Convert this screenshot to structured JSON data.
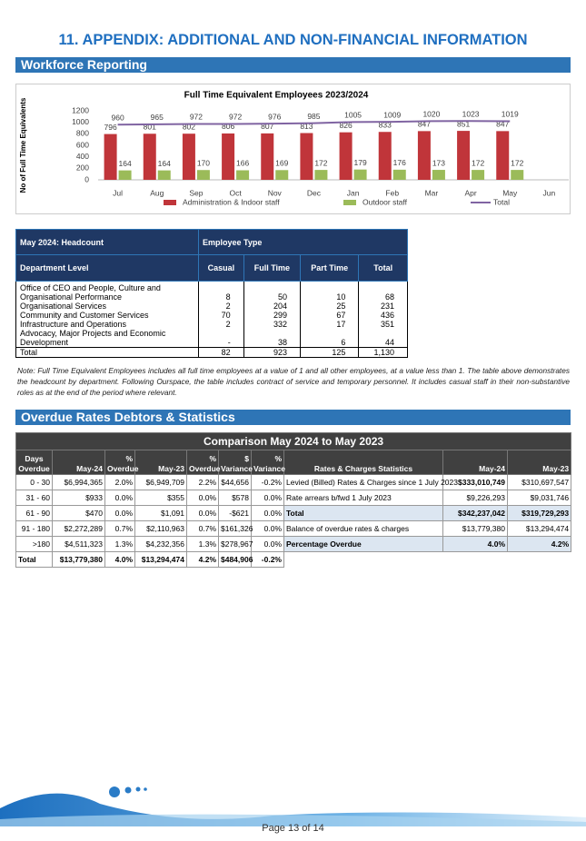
{
  "header": {
    "title": "11. APPENDIX: ADDITIONAL AND NON-FINANCIAL INFORMATION"
  },
  "sections": [
    "Workforce Reporting",
    "Overdue Rates Debtors & Statistics"
  ],
  "chart_data": {
    "type": "bar",
    "title": "Full Time Equivalent Employees 2023/2024",
    "y_label": "No of Full Time Equivalents",
    "categories": [
      "Jul",
      "Aug",
      "Sep",
      "Oct",
      "Nov",
      "Dec",
      "Jan",
      "Feb",
      "Mar",
      "Apr",
      "May",
      "Jun"
    ],
    "series": [
      {
        "name": "Administration & Indoor staff",
        "color": "#c0353a",
        "values": [
          796,
          801,
          802,
          806,
          807,
          813,
          826,
          833,
          847,
          851,
          847,
          null
        ]
      },
      {
        "name": "Outdoor staff",
        "color": "#9bbb59",
        "values": [
          164,
          164,
          170,
          166,
          169,
          172,
          179,
          176,
          173,
          172,
          172,
          null
        ]
      },
      {
        "name": "Total",
        "type": "line",
        "color": "#8064a2",
        "values": [
          960,
          965,
          972,
          972,
          976,
          985,
          1005,
          1009,
          1020,
          1023,
          1019,
          null
        ]
      }
    ],
    "ylim": [
      0,
      1200
    ],
    "yticks": [
      0,
      200,
      400,
      600,
      800,
      1000,
      1200
    ],
    "grid": false,
    "legend": "bottom"
  },
  "headcount_table": {
    "title": "May 2024: Headcount",
    "group": "Employee Type",
    "columns": [
      "Department Level",
      "Casual",
      "Full Time",
      "Part Time",
      "Total"
    ],
    "rows": [
      [
        "Office of CEO and People, Culture and Organisational Performance",
        8,
        50,
        10,
        68
      ],
      [
        "Organisational Services",
        2,
        204,
        25,
        231
      ],
      [
        "Community and Customer Services",
        70,
        299,
        67,
        436
      ],
      [
        "Infrastructure and Operations",
        2,
        332,
        17,
        351
      ],
      [
        "Advocacy, Major Projects and Economic Development",
        "-",
        38,
        6,
        44
      ]
    ],
    "total": [
      "Total",
      82,
      923,
      125,
      "1,130"
    ]
  },
  "note": "Note: Full Time Equivalent Employees includes all full time employees at a value of 1 and all other employees, at a value less than 1. The table above demonstrates the headcount by department. Following Ourspace, the table includes contract of service and temporary personnel. It includes casual staff in their non-substantive roles as at the end of the period where relevant.",
  "comparison_title": "Comparison May 2024 to May 2023",
  "overdue_table": {
    "columns": [
      "Days Overdue",
      "May-24",
      "% Overdue",
      "May-23",
      "% Overdue",
      "$ Variance",
      "% Variance"
    ],
    "rows": [
      [
        "0 - 30",
        "$6,994,365",
        "2.0%",
        "$6,949,709",
        "2.2%",
        "$44,656",
        "-0.2%"
      ],
      [
        "31 - 60",
        "$933",
        "0.0%",
        "$355",
        "0.0%",
        "$578",
        "0.0%"
      ],
      [
        "61 - 90",
        "$470",
        "0.0%",
        "$1,091",
        "0.0%",
        "-$621",
        "0.0%"
      ],
      [
        "91 - 180",
        "$2,272,289",
        "0.7%",
        "$2,110,963",
        "0.7%",
        "$161,326",
        "0.0%"
      ],
      [
        ">180",
        "$4,511,323",
        "1.3%",
        "$4,232,356",
        "1.3%",
        "$278,967",
        "0.0%"
      ],
      [
        "Total",
        "$13,779,380",
        "4.0%",
        "$13,294,474",
        "4.2%",
        "$484,906",
        "-0.2%"
      ]
    ]
  },
  "stats_table": {
    "columns": [
      "Rates & Charges Statistics",
      "May-24",
      "May-23"
    ],
    "rows": [
      [
        "Levied (Billed) Rates & Charges since 1 July 2023",
        "$333,010,749",
        "$310,697,547"
      ],
      [
        "Rate arrears b/fwd 1 July 2023",
        "$9,226,293",
        "$9,031,746"
      ],
      [
        "Total",
        "$342,237,042",
        "$319,729,293"
      ],
      [
        "Balance of overdue rates & charges",
        "$13,779,380",
        "$13,294,474"
      ],
      [
        "Percentage Overdue",
        "4.0%",
        "4.2%"
      ]
    ]
  },
  "footer": "Page 13 of 14"
}
